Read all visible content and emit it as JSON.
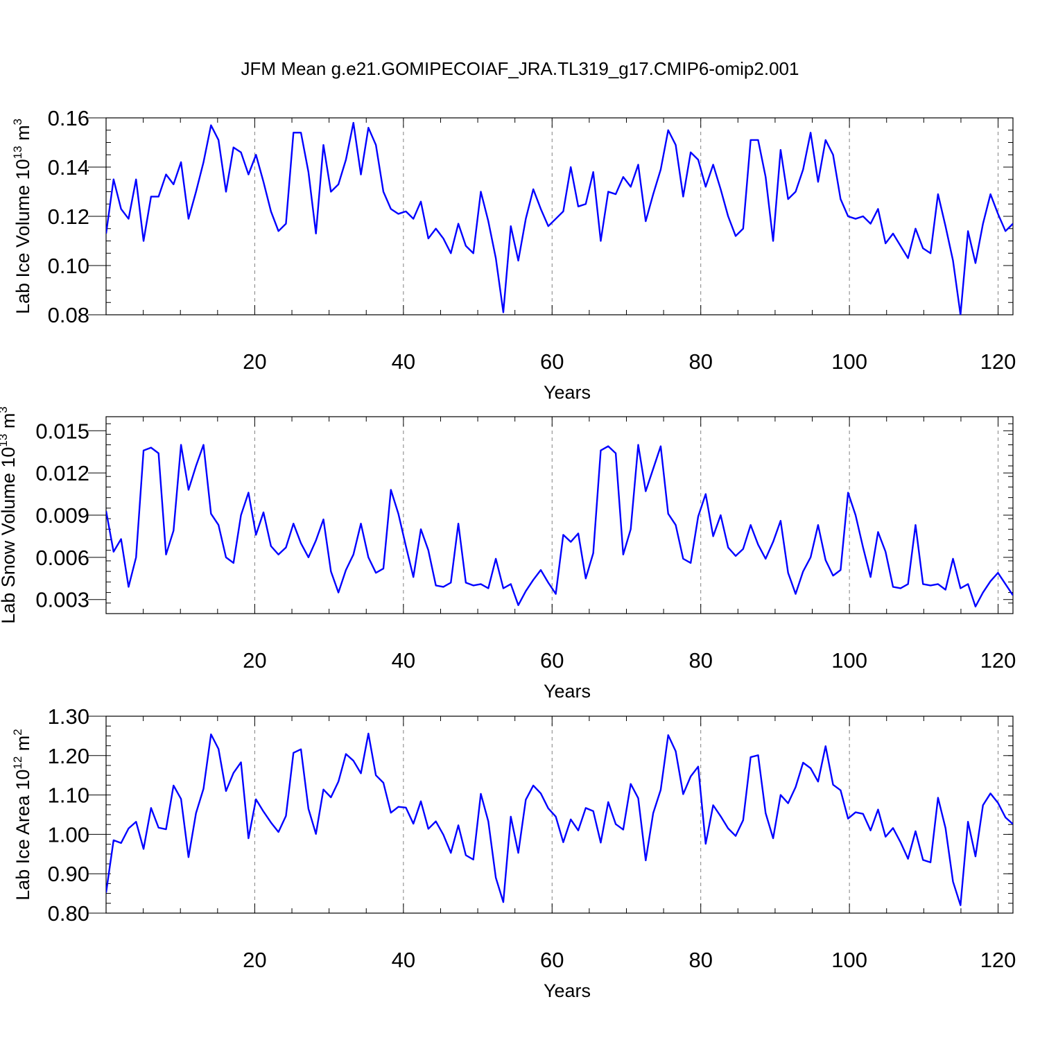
{
  "title": "JFM Mean g.e21.GOMIPECOIAF_JRA.TL319_g17.CMIP6-omip2.001",
  "line_color": "#0000ff",
  "chart_data": [
    {
      "type": "line",
      "xlabel": "Years",
      "ylabel_main": "Lab Ice Volume 10",
      "ylabel_sup": "13",
      "ylabel_unit": " m",
      "ylabel_unit_sup": "3",
      "xlim": [
        0,
        122
      ],
      "ylim": [
        0.08,
        0.16
      ],
      "xticks": [
        20,
        40,
        60,
        80,
        100,
        120
      ],
      "xtick_labels": [
        "20",
        "40",
        "60",
        "80",
        "100",
        "120"
      ],
      "yticks": [
        0.08,
        0.1,
        0.12,
        0.14,
        0.16
      ],
      "ytick_labels": [
        "0.08",
        "0.10",
        "0.12",
        "0.14",
        "0.16"
      ],
      "grid_x": [
        20,
        40,
        60,
        80,
        100,
        120
      ],
      "x_start": 0,
      "values": [
        0.113,
        0.135,
        0.123,
        0.119,
        0.135,
        0.11,
        0.128,
        0.128,
        0.137,
        0.133,
        0.142,
        0.119,
        0.13,
        0.142,
        0.157,
        0.151,
        0.13,
        0.148,
        0.146,
        0.137,
        0.145,
        0.134,
        0.122,
        0.114,
        0.117,
        0.154,
        0.154,
        0.138,
        0.113,
        0.149,
        0.13,
        0.133,
        0.143,
        0.158,
        0.137,
        0.156,
        0.149,
        0.13,
        0.123,
        0.121,
        0.122,
        0.119,
        0.126,
        0.111,
        0.115,
        0.111,
        0.105,
        0.117,
        0.108,
        0.105,
        0.13,
        0.118,
        0.103,
        0.081,
        0.116,
        0.102,
        0.119,
        0.131,
        0.123,
        0.116,
        0.119,
        0.122,
        0.14,
        0.124,
        0.125,
        0.138,
        0.11,
        0.13,
        0.129,
        0.136,
        0.132,
        0.141,
        0.118,
        0.129,
        0.139,
        0.155,
        0.149,
        0.128,
        0.146,
        0.143,
        0.132,
        0.141,
        0.131,
        0.12,
        0.112,
        0.115,
        0.151,
        0.151,
        0.136,
        0.11,
        0.147,
        0.127,
        0.13,
        0.139,
        0.154,
        0.134,
        0.151,
        0.145,
        0.127,
        0.12,
        0.119,
        0.12,
        0.117,
        0.123,
        0.109,
        0.113,
        0.108,
        0.103,
        0.115,
        0.107,
        0.105,
        0.129,
        0.116,
        0.102,
        0.08,
        0.114,
        0.101,
        0.117,
        0.129,
        0.121,
        0.114,
        0.117
      ]
    },
    {
      "type": "line",
      "xlabel": "Years",
      "ylabel_main": "Lab Snow Volume 10",
      "ylabel_sup": "13",
      "ylabel_unit": " m",
      "ylabel_unit_sup": "3",
      "xlim": [
        0,
        122
      ],
      "ylim": [
        0.002,
        0.016
      ],
      "xticks": [
        20,
        40,
        60,
        80,
        100,
        120
      ],
      "xtick_labels": [
        "20",
        "40",
        "60",
        "80",
        "100",
        "120"
      ],
      "yticks": [
        0.003,
        0.006,
        0.009,
        0.012,
        0.015
      ],
      "ytick_labels": [
        "0.003",
        "0.006",
        "0.009",
        "0.012",
        "0.015"
      ],
      "grid_x": [
        20,
        40,
        60,
        80,
        100,
        120
      ],
      "x_start": 0,
      "values": [
        0.0093,
        0.0064,
        0.0073,
        0.0039,
        0.006,
        0.0136,
        0.0138,
        0.0134,
        0.0062,
        0.0079,
        0.014,
        0.0108,
        0.0125,
        0.014,
        0.0091,
        0.0083,
        0.006,
        0.0056,
        0.009,
        0.0106,
        0.0076,
        0.0092,
        0.0068,
        0.0062,
        0.0067,
        0.0084,
        0.007,
        0.006,
        0.0072,
        0.0087,
        0.005,
        0.0035,
        0.0051,
        0.0062,
        0.0084,
        0.006,
        0.0049,
        0.0052,
        0.0108,
        0.0091,
        0.0068,
        0.0046,
        0.008,
        0.0065,
        0.004,
        0.0039,
        0.0042,
        0.0084,
        0.0042,
        0.004,
        0.0041,
        0.0038,
        0.0059,
        0.0038,
        0.0041,
        0.0026,
        0.0036,
        0.0044,
        0.0051,
        0.0042,
        0.0034,
        0.0076,
        0.0071,
        0.0077,
        0.0045,
        0.0063,
        0.0136,
        0.0139,
        0.0134,
        0.0062,
        0.008,
        0.014,
        0.0107,
        0.0123,
        0.0139,
        0.0091,
        0.0083,
        0.0059,
        0.0056,
        0.0089,
        0.0105,
        0.0075,
        0.009,
        0.0067,
        0.0061,
        0.0066,
        0.0083,
        0.0069,
        0.0059,
        0.0071,
        0.0086,
        0.0049,
        0.0034,
        0.005,
        0.006,
        0.0083,
        0.0058,
        0.0047,
        0.0051,
        0.0106,
        0.009,
        0.0067,
        0.0046,
        0.0078,
        0.0064,
        0.0039,
        0.0038,
        0.0041,
        0.0083,
        0.0041,
        0.004,
        0.0041,
        0.0037,
        0.0059,
        0.0038,
        0.0041,
        0.0025,
        0.0035,
        0.0043,
        0.0049,
        0.0041,
        0.0033
      ]
    },
    {
      "type": "line",
      "xlabel": "Years",
      "ylabel_main": "Lab Ice Area 10",
      "ylabel_sup": "12",
      "ylabel_unit": " m",
      "ylabel_unit_sup": "2",
      "xlim": [
        0,
        122
      ],
      "ylim": [
        0.8,
        1.3
      ],
      "xticks": [
        20,
        40,
        60,
        80,
        100,
        120
      ],
      "xtick_labels": [
        "20",
        "40",
        "60",
        "80",
        "100",
        "120"
      ],
      "yticks": [
        0.8,
        0.9,
        1.0,
        1.1,
        1.2,
        1.3
      ],
      "ytick_labels": [
        "0.80",
        "0.90",
        "1.00",
        "1.10",
        "1.20",
        "1.30"
      ],
      "grid_x": [
        20,
        40,
        60,
        80,
        100,
        120
      ],
      "x_start": 0,
      "values": [
        0.852,
        0.985,
        0.978,
        1.015,
        1.032,
        0.963,
        1.067,
        1.017,
        1.013,
        1.124,
        1.09,
        0.942,
        1.054,
        1.116,
        1.254,
        1.217,
        1.11,
        1.156,
        1.183,
        0.99,
        1.089,
        1.058,
        1.03,
        1.006,
        1.047,
        1.207,
        1.216,
        1.065,
        1.001,
        1.114,
        1.094,
        1.134,
        1.204,
        1.187,
        1.155,
        1.256,
        1.15,
        1.131,
        1.055,
        1.07,
        1.068,
        1.027,
        1.084,
        1.014,
        1.033,
        0.999,
        0.953,
        1.023,
        0.947,
        0.936,
        1.103,
        1.033,
        0.89,
        0.828,
        1.045,
        0.953,
        1.088,
        1.124,
        1.104,
        1.066,
        1.045,
        0.98,
        1.038,
        1.01,
        1.067,
        1.059,
        0.979,
        1.082,
        1.026,
        1.012,
        1.128,
        1.092,
        0.934,
        1.054,
        1.113,
        1.252,
        1.211,
        1.102,
        1.147,
        1.172,
        0.976,
        1.074,
        1.046,
        1.015,
        0.996,
        1.036,
        1.196,
        1.201,
        1.054,
        0.99,
        1.1,
        1.079,
        1.12,
        1.182,
        1.168,
        1.134,
        1.224,
        1.126,
        1.112,
        1.04,
        1.056,
        1.052,
        1.01,
        1.063,
        0.994,
        1.016,
        0.98,
        0.938,
        1.008,
        0.935,
        0.929,
        1.093,
        1.016,
        0.88,
        0.82,
        1.032,
        0.944,
        1.074,
        1.104,
        1.08,
        1.043,
        1.026
      ]
    }
  ]
}
